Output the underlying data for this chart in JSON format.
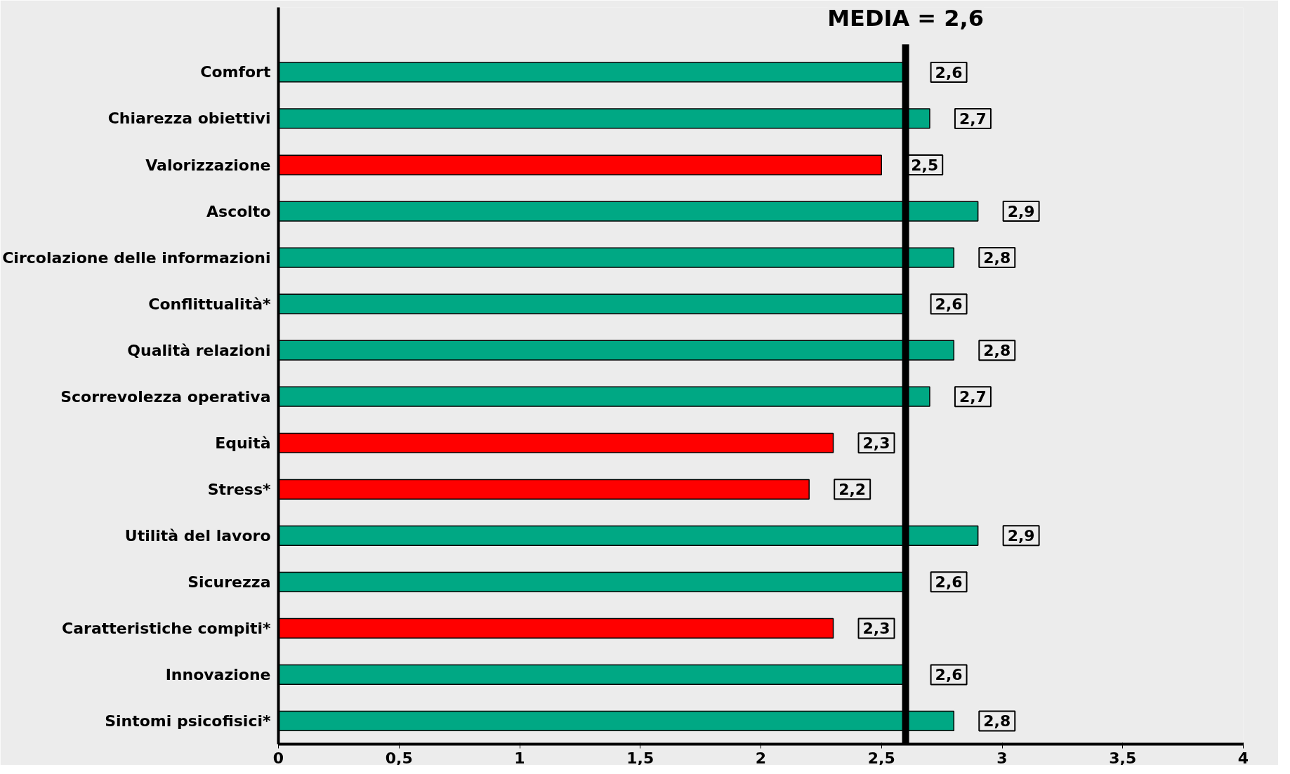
{
  "chart_data": {
    "type": "bar",
    "orientation": "horizontal",
    "categories": [
      "Comfort",
      "Chiarezza obiettivi",
      "Valorizzazione",
      "Ascolto",
      "Circolazione delle informazioni",
      "Conflittualità*",
      "Qualità relazioni",
      "Scorrevolezza operativa",
      "Equità",
      "Stress*",
      "Utilità del lavoro",
      "Sicurezza",
      "Caratteristiche compiti*",
      "Innovazione",
      "Sintomi psicofisici*"
    ],
    "values": [
      2.6,
      2.7,
      2.5,
      2.9,
      2.8,
      2.6,
      2.8,
      2.7,
      2.3,
      2.2,
      2.9,
      2.6,
      2.3,
      2.6,
      2.8
    ],
    "colors": [
      "#00a884",
      "#00a884",
      "#ff0000",
      "#00a884",
      "#00a884",
      "#00a884",
      "#00a884",
      "#00a884",
      "#ff0000",
      "#ff0000",
      "#00a884",
      "#00a884",
      "#ff0000",
      "#00a884",
      "#00a884"
    ],
    "value_labels": [
      "2,6",
      "2,7",
      "2,5",
      "2,9",
      "2,8",
      "2,6",
      "2,8",
      "2,7",
      "2,3",
      "2,2",
      "2,9",
      "2,6",
      "2,3",
      "2,6",
      "2,8"
    ],
    "xlim": [
      0,
      4
    ],
    "xticks": [
      0,
      {
        "value": 0.5,
        "label": "0,5"
      },
      1,
      {
        "value": 1.5,
        "label": "1,5"
      },
      2,
      {
        "value": 2.5,
        "label": "2,5"
      },
      3,
      {
        "value": 3.5,
        "label": "3,5"
      },
      4
    ],
    "ref_lines": [
      {
        "axis": "x",
        "value": 2.6,
        "label": "MEDIA = 2,6",
        "color": "#000000"
      }
    ],
    "grid": false
  }
}
